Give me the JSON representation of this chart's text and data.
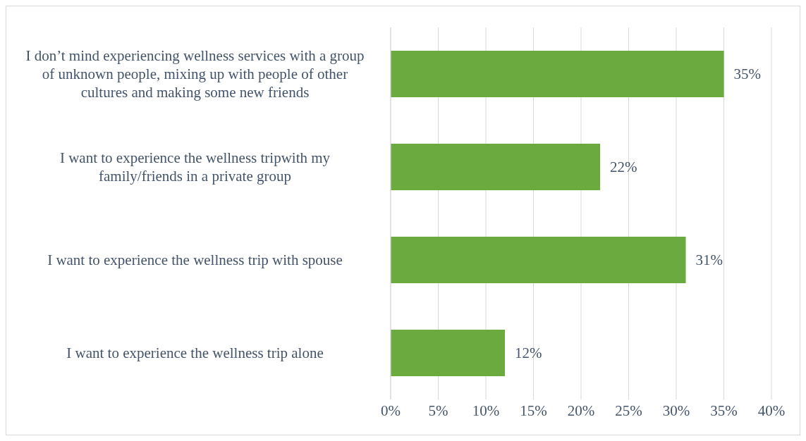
{
  "chart_data": {
    "type": "bar",
    "orientation": "horizontal",
    "categories": [
      "I don’t mind experiencing wellness services with a group of unknown people, mixing up with people of other cultures and making some new friends",
      "I want to experience the wellness tripwith my family/friends in a private group",
      "I want to experience the wellness trip with spouse",
      "I want to experience the wellness trip alone"
    ],
    "values": [
      35,
      22,
      31,
      12
    ],
    "value_labels": [
      "35%",
      "22%",
      "31%",
      "12%"
    ],
    "color": "#6aaa3e",
    "xlim": [
      0,
      40
    ],
    "xticks": [
      {
        "value": 0,
        "label": "0%"
      },
      {
        "value": 5,
        "label": "5%"
      },
      {
        "value": 10,
        "label": "10%"
      },
      {
        "value": 15,
        "label": "15%"
      },
      {
        "value": 20,
        "label": "20%"
      },
      {
        "value": 25,
        "label": "25%"
      },
      {
        "value": 30,
        "label": "30%"
      },
      {
        "value": 35,
        "label": "35%"
      },
      {
        "value": 40,
        "label": "40%"
      }
    ],
    "grid": "x",
    "legend": false
  }
}
